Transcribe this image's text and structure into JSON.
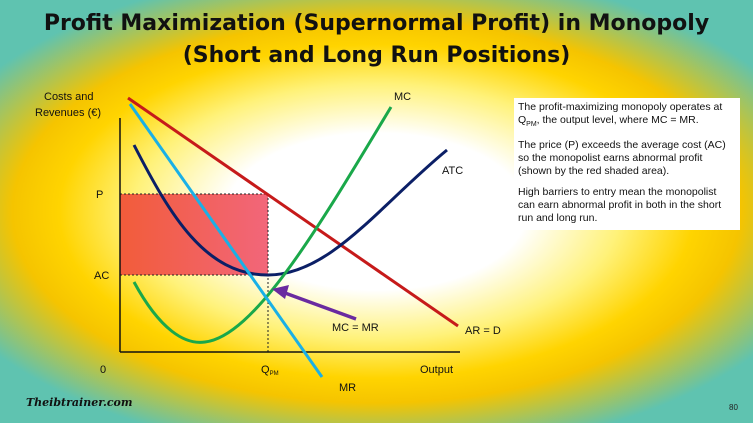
{
  "title": {
    "line1": "Profit Maximization (Supernormal Profit) in Monopoly",
    "line2": "(Short and Long Run Positions)"
  },
  "axes": {
    "y_label_line1": "Costs and",
    "y_label_line2": "Revenues (€)",
    "x_label": "Output",
    "origin": "0",
    "p_tick": "P",
    "ac_tick": "AC",
    "q_tick_main": "Q",
    "q_tick_sub": "PM"
  },
  "curves": {
    "mc": "MC",
    "atc": "ATC",
    "ar_d": "AR = D",
    "mr": "MR",
    "mc_eq_mr": "MC = MR"
  },
  "colors": {
    "mc": "#1aa84a",
    "atc": "#0b1f66",
    "ar_d": "#c61a1a",
    "mr": "#1ab0e6",
    "profit_area": "#ef5a52",
    "arrow": "#6a2aa0"
  },
  "notes": {
    "p1_prefix": "The profit-maximizing monopoly operates at Q",
    "p1_sub": "PM",
    "p1_suffix": ", the output level, where MC = MR.",
    "p2": "The price (P) exceeds the average cost (AC) so the monopolist earns abnormal profit (shown by the red shaded area).",
    "p3": "High barriers to entry mean the monopolist can earn abnormal profit in both in the short run and long run."
  },
  "footer": {
    "logo": "Theibtrainer.com",
    "page": "80"
  }
}
